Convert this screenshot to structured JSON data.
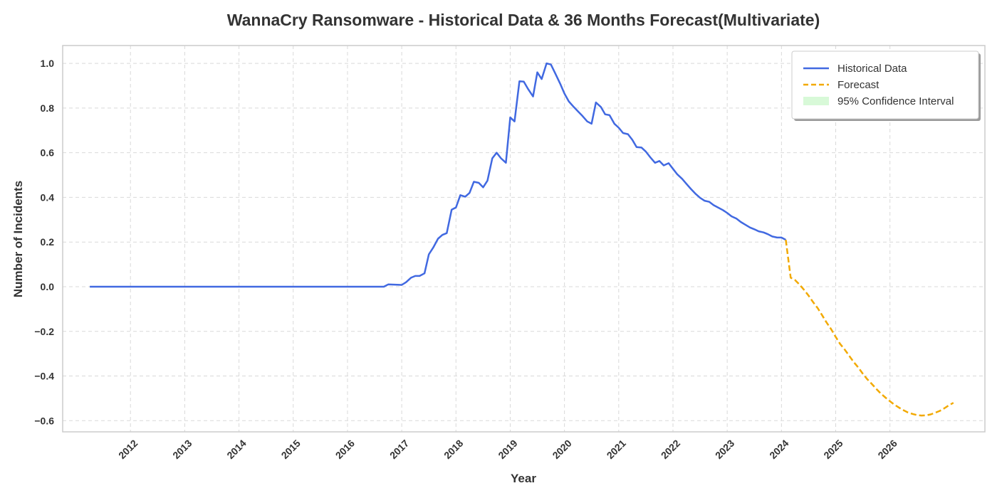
{
  "chart_data": {
    "type": "line",
    "title": "WannaCry Ransomware - Historical Data & 36 Months Forecast(Multivariate)",
    "xlabel": "Year",
    "ylabel": "Number of Incidents",
    "xlim": [
      2010.75,
      2027.75
    ],
    "ylim": [
      -0.65,
      1.08
    ],
    "x_ticks": [
      2012,
      2013,
      2014,
      2015,
      2016,
      2017,
      2018,
      2019,
      2020,
      2021,
      2022,
      2023,
      2024,
      2025,
      2026
    ],
    "x_tick_labels": [
      "2012",
      "2013",
      "2014",
      "2015",
      "2016",
      "2017",
      "2018",
      "2019",
      "2020",
      "2021",
      "2022",
      "2023",
      "2024",
      "2025",
      "2026"
    ],
    "y_ticks": [
      -0.6,
      -0.4,
      -0.2,
      0.0,
      0.2,
      0.4,
      0.6,
      0.8,
      1.0
    ],
    "y_tick_labels": [
      "−0.6",
      "−0.4",
      "−0.2",
      "0.0",
      "0.2",
      "0.4",
      "0.6",
      "0.8",
      "1.0"
    ],
    "grid": true,
    "legend_position": "top-right",
    "colors": {
      "historical": "#4169e1",
      "forecast": "#f2a900",
      "confidence": "#90ee90",
      "grid": "#d9d9d9",
      "axes": "#cccccc",
      "text": "#333333"
    },
    "series": [
      {
        "name": "Historical Data",
        "style": "solid",
        "points": [
          [
            2011.25,
            0.0
          ],
          [
            2016.67,
            0.0
          ],
          [
            2016.75,
            0.01
          ],
          [
            2017.0,
            0.008
          ],
          [
            2017.08,
            0.02
          ],
          [
            2017.17,
            0.04
          ],
          [
            2017.25,
            0.048
          ],
          [
            2017.33,
            0.048
          ],
          [
            2017.42,
            0.06
          ],
          [
            2017.5,
            0.145
          ],
          [
            2017.58,
            0.175
          ],
          [
            2017.67,
            0.215
          ],
          [
            2017.75,
            0.232
          ],
          [
            2017.83,
            0.24
          ],
          [
            2017.92,
            0.345
          ],
          [
            2018.0,
            0.355
          ],
          [
            2018.08,
            0.41
          ],
          [
            2018.17,
            0.403
          ],
          [
            2018.25,
            0.42
          ],
          [
            2018.33,
            0.47
          ],
          [
            2018.42,
            0.465
          ],
          [
            2018.5,
            0.445
          ],
          [
            2018.58,
            0.475
          ],
          [
            2018.67,
            0.575
          ],
          [
            2018.75,
            0.6
          ],
          [
            2018.83,
            0.575
          ],
          [
            2018.92,
            0.555
          ],
          [
            2019.0,
            0.758
          ],
          [
            2019.08,
            0.74
          ],
          [
            2019.17,
            0.92
          ],
          [
            2019.25,
            0.918
          ],
          [
            2019.33,
            0.885
          ],
          [
            2019.42,
            0.852
          ],
          [
            2019.5,
            0.96
          ],
          [
            2019.58,
            0.93
          ],
          [
            2019.67,
            1.0
          ],
          [
            2019.75,
            0.995
          ],
          [
            2019.83,
            0.955
          ],
          [
            2019.92,
            0.91
          ],
          [
            2020.0,
            0.865
          ],
          [
            2020.08,
            0.83
          ],
          [
            2020.17,
            0.805
          ],
          [
            2020.25,
            0.785
          ],
          [
            2020.33,
            0.765
          ],
          [
            2020.42,
            0.74
          ],
          [
            2020.5,
            0.73
          ],
          [
            2020.58,
            0.825
          ],
          [
            2020.67,
            0.805
          ],
          [
            2020.75,
            0.772
          ],
          [
            2020.83,
            0.768
          ],
          [
            2020.92,
            0.73
          ],
          [
            2021.0,
            0.712
          ],
          [
            2021.08,
            0.688
          ],
          [
            2021.17,
            0.683
          ],
          [
            2021.25,
            0.658
          ],
          [
            2021.33,
            0.625
          ],
          [
            2021.42,
            0.623
          ],
          [
            2021.5,
            0.605
          ],
          [
            2021.58,
            0.58
          ],
          [
            2021.67,
            0.555
          ],
          [
            2021.75,
            0.563
          ],
          [
            2021.83,
            0.543
          ],
          [
            2021.92,
            0.553
          ],
          [
            2022.0,
            0.528
          ],
          [
            2022.08,
            0.503
          ],
          [
            2022.17,
            0.483
          ],
          [
            2022.25,
            0.46
          ],
          [
            2022.33,
            0.438
          ],
          [
            2022.42,
            0.415
          ],
          [
            2022.5,
            0.398
          ],
          [
            2022.58,
            0.385
          ],
          [
            2022.67,
            0.38
          ],
          [
            2022.75,
            0.365
          ],
          [
            2022.83,
            0.355
          ],
          [
            2022.92,
            0.343
          ],
          [
            2023.0,
            0.33
          ],
          [
            2023.08,
            0.315
          ],
          [
            2023.17,
            0.305
          ],
          [
            2023.25,
            0.29
          ],
          [
            2023.33,
            0.278
          ],
          [
            2023.42,
            0.265
          ],
          [
            2023.5,
            0.257
          ],
          [
            2023.58,
            0.248
          ],
          [
            2023.67,
            0.243
          ],
          [
            2023.75,
            0.235
          ],
          [
            2023.83,
            0.225
          ],
          [
            2023.92,
            0.22
          ],
          [
            2024.0,
            0.22
          ],
          [
            2024.08,
            0.21
          ]
        ]
      },
      {
        "name": "Forecast",
        "style": "dashed",
        "points": [
          [
            2024.08,
            0.21
          ],
          [
            2024.17,
            0.04
          ],
          [
            2024.25,
            0.03
          ],
          [
            2024.33,
            0.01
          ],
          [
            2024.42,
            -0.015
          ],
          [
            2024.5,
            -0.04
          ],
          [
            2024.58,
            -0.068
          ],
          [
            2024.67,
            -0.097
          ],
          [
            2024.75,
            -0.128
          ],
          [
            2024.83,
            -0.16
          ],
          [
            2024.92,
            -0.192
          ],
          [
            2025.0,
            -0.225
          ],
          [
            2025.08,
            -0.256
          ],
          [
            2025.17,
            -0.283
          ],
          [
            2025.25,
            -0.31
          ],
          [
            2025.33,
            -0.337
          ],
          [
            2025.42,
            -0.363
          ],
          [
            2025.5,
            -0.39
          ],
          [
            2025.58,
            -0.414
          ],
          [
            2025.67,
            -0.437
          ],
          [
            2025.75,
            -0.458
          ],
          [
            2025.83,
            -0.478
          ],
          [
            2025.92,
            -0.497
          ],
          [
            2026.0,
            -0.513
          ],
          [
            2026.08,
            -0.528
          ],
          [
            2026.17,
            -0.542
          ],
          [
            2026.25,
            -0.553
          ],
          [
            2026.33,
            -0.563
          ],
          [
            2026.42,
            -0.57
          ],
          [
            2026.5,
            -0.575
          ],
          [
            2026.58,
            -0.577
          ],
          [
            2026.67,
            -0.576
          ],
          [
            2026.75,
            -0.572
          ],
          [
            2026.83,
            -0.565
          ],
          [
            2026.92,
            -0.556
          ],
          [
            2027.0,
            -0.545
          ],
          [
            2027.08,
            -0.532
          ],
          [
            2027.17,
            -0.52
          ]
        ]
      }
    ],
    "legend": [
      {
        "label": "Historical Data",
        "kind": "line-solid"
      },
      {
        "label": "Forecast",
        "kind": "line-dashed"
      },
      {
        "label": "95% Confidence Interval",
        "kind": "band"
      }
    ]
  }
}
